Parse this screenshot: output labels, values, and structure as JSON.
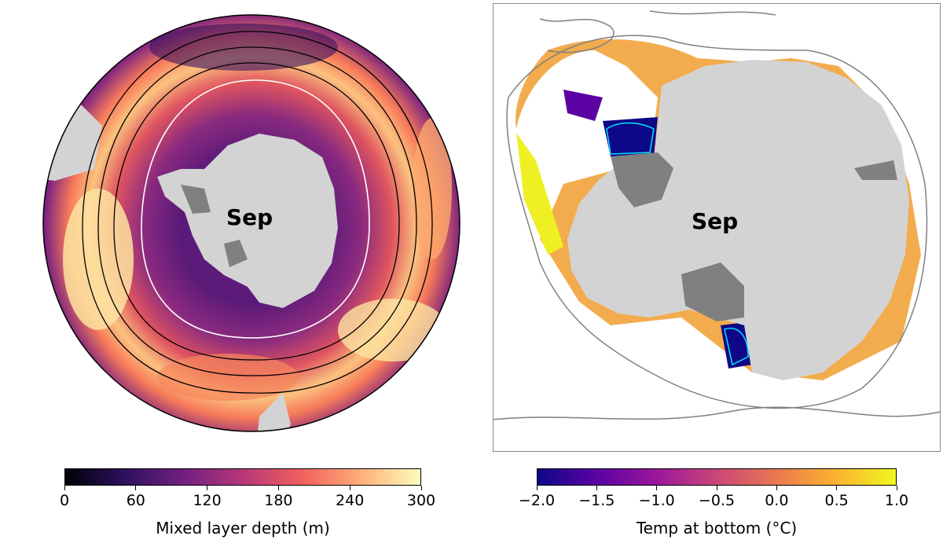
{
  "left_map": {
    "month_label": "Sep",
    "colorbar": {
      "title": "Mixed layer depth (m)",
      "ticks": [
        "0",
        "60",
        "120",
        "180",
        "240",
        "300"
      ],
      "range": [
        0,
        300
      ],
      "colormap": [
        "#000004",
        "#2c115f",
        "#721f81",
        "#b73779",
        "#f1605d",
        "#feb078",
        "#fcfdbf"
      ]
    },
    "land_color": "#d3d3d3",
    "contour_colors": {
      "fronts": "#000000",
      "ice_edge": "#ffffff"
    }
  },
  "right_map": {
    "month_label": "Sep",
    "colorbar": {
      "title": "Temp at bottom (°C)",
      "ticks": [
        "−2.0",
        "−1.5",
        "−1.0",
        "−0.5",
        "0.0",
        "0.5",
        "1.0"
      ],
      "range": [
        -2.0,
        1.0
      ],
      "colormap": [
        "#0d0887",
        "#5b02a3",
        "#9a179b",
        "#cb4678",
        "#eb7852",
        "#fbb32f",
        "#eff821"
      ]
    },
    "land_color": "#d3d3d3",
    "ice_shelf_color": "#808080",
    "contour_color": "#00e5ff"
  }
}
